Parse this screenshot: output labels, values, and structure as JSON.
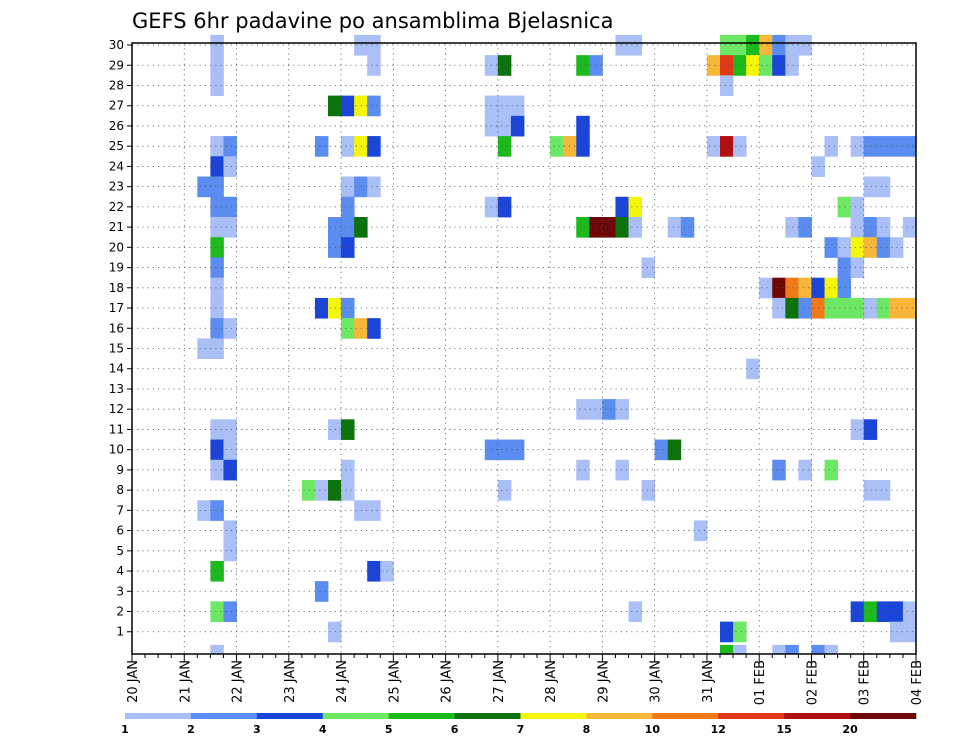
{
  "chart_data": {
    "type": "heatmap",
    "title": "GEFS 6hr padavine po ansamblima Bjelasnica",
    "xlabel": "",
    "ylabel": "",
    "x_tick_labels": [
      "20 JAN",
      "21 JAN",
      "22 JAN",
      "23 JAN",
      "24 JAN",
      "25 JAN",
      "26 JAN",
      "27 JAN",
      "28 JAN",
      "29 JAN",
      "30 JAN",
      "31 JAN",
      "01 FEB",
      "02 FEB",
      "03 FEB",
      "04 FEB"
    ],
    "y_tick_labels": [
      "1",
      "2",
      "3",
      "4",
      "5",
      "6",
      "7",
      "8",
      "9",
      "10",
      "11",
      "12",
      "13",
      "14",
      "15",
      "16",
      "17",
      "18",
      "19",
      "20",
      "21",
      "22",
      "23",
      "24",
      "25",
      "26",
      "27",
      "28",
      "29",
      "30"
    ],
    "xlim_steps": [
      0,
      60
    ],
    "ylim_members": [
      0,
      30
    ],
    "grid": true,
    "legend": {
      "placement": "bottom",
      "labels": [
        "1",
        "2",
        "3",
        "4",
        "5",
        "6",
        "7",
        "8",
        "10",
        "12",
        "15",
        "20"
      ],
      "colors": [
        "#a9bff5",
        "#5b8cf0",
        "#1a45d8",
        "#6ee864",
        "#1cba1c",
        "#0c720c",
        "#f5f50c",
        "#f7b83a",
        "#f07a1a",
        "#e03818",
        "#b01010",
        "#6e0808"
      ]
    },
    "units_note": "cells: [step (6h from 20 JAN 00Z), member, class index into legend.colors]",
    "cells": [
      [
        6,
        30,
        0
      ],
      [
        17,
        30,
        0
      ],
      [
        18,
        30,
        0
      ],
      [
        37,
        30,
        0
      ],
      [
        38,
        30,
        0
      ],
      [
        45,
        30,
        3
      ],
      [
        46,
        30,
        3
      ],
      [
        47,
        30,
        4
      ],
      [
        48,
        30,
        7
      ],
      [
        49,
        30,
        1
      ],
      [
        50,
        30,
        0
      ],
      [
        51,
        30,
        0
      ],
      [
        6,
        29,
        0
      ],
      [
        18,
        29,
        0
      ],
      [
        27,
        29,
        0
      ],
      [
        28,
        29,
        5
      ],
      [
        34,
        29,
        4
      ],
      [
        35,
        29,
        1
      ],
      [
        44,
        29,
        7
      ],
      [
        45,
        29,
        9
      ],
      [
        46,
        29,
        4
      ],
      [
        47,
        29,
        6
      ],
      [
        48,
        29,
        3
      ],
      [
        49,
        29,
        2
      ],
      [
        50,
        29,
        0
      ],
      [
        6,
        28,
        0
      ],
      [
        45,
        28,
        0
      ],
      [
        15,
        27,
        5
      ],
      [
        16,
        27,
        2
      ],
      [
        17,
        27,
        6
      ],
      [
        18,
        27,
        1
      ],
      [
        27,
        27,
        0
      ],
      [
        28,
        27,
        0
      ],
      [
        29,
        27,
        0
      ],
      [
        27,
        26,
        0
      ],
      [
        28,
        26,
        0
      ],
      [
        29,
        26,
        2
      ],
      [
        34,
        26,
        2
      ],
      [
        6,
        25,
        0
      ],
      [
        7,
        25,
        1
      ],
      [
        14,
        25,
        1
      ],
      [
        16,
        25,
        0
      ],
      [
        17,
        25,
        6
      ],
      [
        18,
        25,
        2
      ],
      [
        28,
        25,
        4
      ],
      [
        32,
        25,
        3
      ],
      [
        33,
        25,
        7
      ],
      [
        34,
        25,
        2
      ],
      [
        44,
        25,
        0
      ],
      [
        45,
        25,
        10
      ],
      [
        46,
        25,
        0
      ],
      [
        53,
        25,
        0
      ],
      [
        55,
        25,
        0
      ],
      [
        56,
        25,
        1
      ],
      [
        57,
        25,
        1
      ],
      [
        58,
        25,
        1
      ],
      [
        59,
        25,
        1
      ],
      [
        6,
        24,
        2
      ],
      [
        7,
        24,
        0
      ],
      [
        52,
        24,
        0
      ],
      [
        5,
        23,
        1
      ],
      [
        6,
        23,
        1
      ],
      [
        16,
        23,
        0
      ],
      [
        17,
        23,
        1
      ],
      [
        18,
        23,
        0
      ],
      [
        56,
        23,
        0
      ],
      [
        57,
        23,
        0
      ],
      [
        6,
        22,
        1
      ],
      [
        7,
        22,
        1
      ],
      [
        16,
        22,
        1
      ],
      [
        27,
        22,
        0
      ],
      [
        28,
        22,
        2
      ],
      [
        37,
        22,
        2
      ],
      [
        38,
        22,
        6
      ],
      [
        54,
        22,
        3
      ],
      [
        55,
        22,
        0
      ],
      [
        6,
        21,
        0
      ],
      [
        7,
        21,
        0
      ],
      [
        15,
        21,
        1
      ],
      [
        16,
        21,
        1
      ],
      [
        17,
        21,
        5
      ],
      [
        34,
        21,
        4
      ],
      [
        35,
        21,
        11
      ],
      [
        36,
        21,
        11
      ],
      [
        37,
        21,
        5
      ],
      [
        38,
        21,
        0
      ],
      [
        41,
        21,
        0
      ],
      [
        42,
        21,
        1
      ],
      [
        50,
        21,
        0
      ],
      [
        51,
        21,
        1
      ],
      [
        55,
        21,
        0
      ],
      [
        56,
        21,
        1
      ],
      [
        57,
        21,
        0
      ],
      [
        59,
        21,
        0
      ],
      [
        6,
        20,
        4
      ],
      [
        15,
        20,
        1
      ],
      [
        16,
        20,
        2
      ],
      [
        53,
        20,
        1
      ],
      [
        54,
        20,
        0
      ],
      [
        55,
        20,
        6
      ],
      [
        56,
        20,
        7
      ],
      [
        57,
        20,
        1
      ],
      [
        58,
        20,
        0
      ],
      [
        6,
        19,
        1
      ],
      [
        39,
        19,
        0
      ],
      [
        54,
        19,
        1
      ],
      [
        55,
        19,
        0
      ],
      [
        6,
        18,
        0
      ],
      [
        48,
        18,
        0
      ],
      [
        49,
        18,
        11
      ],
      [
        50,
        18,
        8
      ],
      [
        51,
        18,
        7
      ],
      [
        52,
        18,
        2
      ],
      [
        53,
        18,
        6
      ],
      [
        54,
        18,
        1
      ],
      [
        6,
        17,
        0
      ],
      [
        14,
        17,
        2
      ],
      [
        15,
        17,
        6
      ],
      [
        16,
        17,
        1
      ],
      [
        49,
        17,
        0
      ],
      [
        50,
        17,
        5
      ],
      [
        51,
        17,
        1
      ],
      [
        52,
        17,
        8
      ],
      [
        53,
        17,
        3
      ],
      [
        54,
        17,
        3
      ],
      [
        55,
        17,
        3
      ],
      [
        56,
        17,
        0
      ],
      [
        57,
        17,
        3
      ],
      [
        58,
        17,
        7
      ],
      [
        59,
        17,
        7
      ],
      [
        6,
        16,
        1
      ],
      [
        7,
        16,
        0
      ],
      [
        16,
        16,
        3
      ],
      [
        17,
        16,
        7
      ],
      [
        18,
        16,
        2
      ],
      [
        5,
        15,
        0
      ],
      [
        6,
        15,
        0
      ],
      [
        47,
        14,
        0
      ],
      [
        34,
        12,
        0
      ],
      [
        35,
        12,
        0
      ],
      [
        36,
        12,
        1
      ],
      [
        37,
        12,
        0
      ],
      [
        6,
        11,
        0
      ],
      [
        7,
        11,
        0
      ],
      [
        15,
        11,
        0
      ],
      [
        16,
        11,
        5
      ],
      [
        55,
        11,
        0
      ],
      [
        56,
        11,
        2
      ],
      [
        6,
        10,
        2
      ],
      [
        7,
        10,
        0
      ],
      [
        27,
        10,
        1
      ],
      [
        28,
        10,
        1
      ],
      [
        29,
        10,
        1
      ],
      [
        40,
        10,
        1
      ],
      [
        41,
        10,
        5
      ],
      [
        6,
        9,
        0
      ],
      [
        7,
        9,
        2
      ],
      [
        16,
        9,
        0
      ],
      [
        34,
        9,
        0
      ],
      [
        37,
        9,
        0
      ],
      [
        49,
        9,
        1
      ],
      [
        51,
        9,
        0
      ],
      [
        53,
        9,
        3
      ],
      [
        13,
        8,
        3
      ],
      [
        14,
        8,
        0
      ],
      [
        15,
        8,
        5
      ],
      [
        16,
        8,
        0
      ],
      [
        28,
        8,
        0
      ],
      [
        39,
        8,
        0
      ],
      [
        56,
        8,
        0
      ],
      [
        57,
        8,
        0
      ],
      [
        5,
        7,
        0
      ],
      [
        6,
        7,
        1
      ],
      [
        17,
        7,
        0
      ],
      [
        18,
        7,
        0
      ],
      [
        7,
        6,
        0
      ],
      [
        43,
        6,
        0
      ],
      [
        7,
        5,
        0
      ],
      [
        6,
        4,
        4
      ],
      [
        18,
        4,
        2
      ],
      [
        19,
        4,
        0
      ],
      [
        14,
        3,
        1
      ],
      [
        6,
        2,
        3
      ],
      [
        7,
        2,
        1
      ],
      [
        38,
        2,
        0
      ],
      [
        55,
        2,
        2
      ],
      [
        56,
        2,
        4
      ],
      [
        57,
        2,
        2
      ],
      [
        58,
        2,
        2
      ],
      [
        59,
        2,
        0
      ],
      [
        15,
        1,
        0
      ],
      [
        45,
        1,
        2
      ],
      [
        46,
        1,
        3
      ],
      [
        58,
        1,
        0
      ],
      [
        59,
        1,
        0
      ],
      [
        6,
        0,
        0
      ],
      [
        45,
        0,
        4
      ],
      [
        46,
        0,
        0
      ],
      [
        49,
        0,
        0
      ],
      [
        50,
        0,
        1
      ],
      [
        52,
        0,
        1
      ],
      [
        53,
        0,
        0
      ]
    ]
  }
}
